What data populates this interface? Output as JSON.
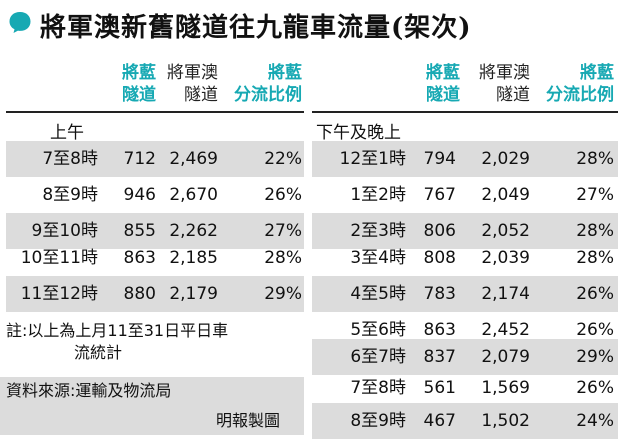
{
  "title": "將軍澳新舊隧道往九龍車流量(架次)",
  "colors": {
    "accent": "#17a9b3",
    "shade": "#dcdcdc"
  },
  "headers": {
    "col1": [
      "將藍",
      "隧道"
    ],
    "col2": [
      "將軍澳",
      "隧道"
    ],
    "col3": [
      "將藍",
      "分流比例"
    ]
  },
  "left_section": {
    "label": "上午",
    "rows": [
      {
        "time": "7至8時",
        "a": "712",
        "b": "2,469",
        "pct": "22%"
      },
      {
        "time": "8至9時",
        "a": "946",
        "b": "2,670",
        "pct": "26%"
      },
      {
        "time": "9至10時",
        "a": "855",
        "b": "2,262",
        "pct": "27%"
      },
      {
        "time": "10至11時",
        "a": "863",
        "b": "2,185",
        "pct": "28%"
      },
      {
        "time": "11至12時",
        "a": "880",
        "b": "2,179",
        "pct": "29%"
      }
    ]
  },
  "right_section": {
    "label": "下午及晚上",
    "rows": [
      {
        "time": "12至1時",
        "a": "794",
        "b": "2,029",
        "pct": "28%"
      },
      {
        "time": "1至2時",
        "a": "767",
        "b": "2,049",
        "pct": "27%"
      },
      {
        "time": "2至3時",
        "a": "806",
        "b": "2,052",
        "pct": "28%"
      },
      {
        "time": "3至4時",
        "a": "808",
        "b": "2,039",
        "pct": "28%"
      },
      {
        "time": "4至5時",
        "a": "783",
        "b": "2,174",
        "pct": "26%"
      },
      {
        "time": "5至6時",
        "a": "863",
        "b": "2,452",
        "pct": "26%"
      },
      {
        "time": "6至7時",
        "a": "837",
        "b": "2,079",
        "pct": "29%"
      },
      {
        "time": "7至8時",
        "a": "561",
        "b": "1,569",
        "pct": "26%"
      },
      {
        "time": "8至9時",
        "a": "467",
        "b": "1,502",
        "pct": "24%"
      }
    ]
  },
  "notes": {
    "note_line1": "註:以上為上月11至31日平日車",
    "note_line2": "流統計",
    "source": "資料來源:運輸及物流局",
    "credit": "明報製圖"
  }
}
